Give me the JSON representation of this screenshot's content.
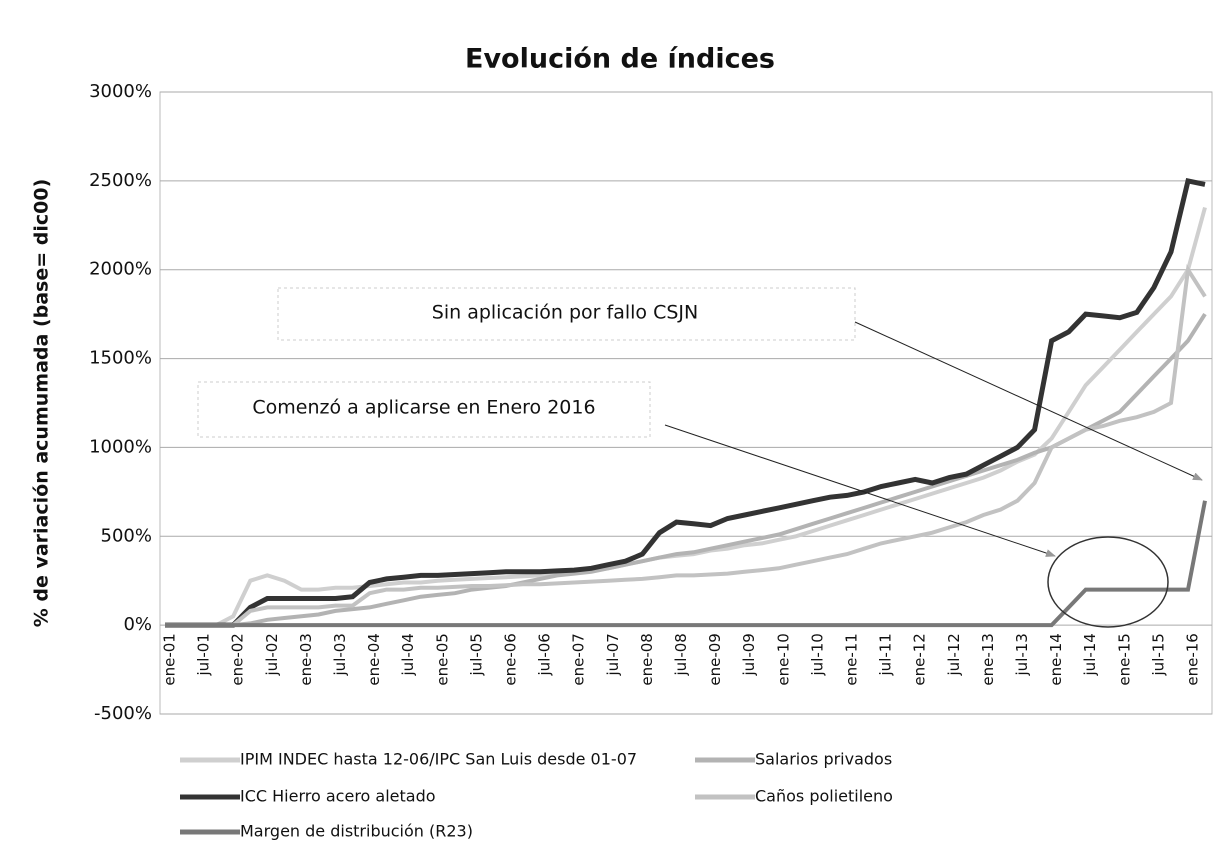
{
  "chart_data": {
    "type": "line",
    "title": "Evolución de índices",
    "y_label": "% de variación acumumada (base= dic00)",
    "annotations": [
      "Sin aplicación por fallo CSJN",
      "Comenzó a aplicarse en Enero 2016"
    ],
    "categories": [
      "ene-01",
      null,
      "jul-01",
      null,
      "ene-02",
      null,
      "jul-02",
      null,
      "ene-03",
      null,
      "jul-03",
      null,
      "ene-04",
      null,
      "jul-04",
      null,
      "ene-05",
      null,
      "jul-05",
      null,
      "ene-06",
      null,
      "jul-06",
      null,
      "ene-07",
      null,
      "jul-07",
      null,
      "ene-08",
      null,
      "jul-08",
      null,
      "ene-09",
      null,
      "jul-09",
      null,
      "ene-10",
      null,
      "jul-10",
      null,
      "ene-11",
      null,
      "jul-11",
      null,
      "ene-12",
      null,
      "jul-12",
      null,
      "ene-13",
      null,
      "jul-13",
      null,
      "ene-14",
      null,
      "jul-14",
      null,
      "ene-15",
      null,
      "jul-15",
      null,
      "ene-16",
      null
    ],
    "series": [
      {
        "name": "IPIM INDEC hasta 12-06/IPC San Luis desde 01-07",
        "color": "#cfcfcf",
        "values": [
          0,
          0,
          0,
          0,
          50,
          250,
          280,
          250,
          200,
          200,
          210,
          210,
          220,
          230,
          240,
          240,
          250,
          255,
          260,
          265,
          270,
          275,
          280,
          290,
          300,
          310,
          320,
          340,
          360,
          380,
          390,
          400,
          420,
          430,
          450,
          460,
          480,
          500,
          530,
          560,
          590,
          620,
          650,
          680,
          710,
          740,
          770,
          800,
          830,
          870,
          920,
          960,
          1050,
          1200,
          1350,
          1450,
          1550,
          1650,
          1750,
          1850,
          2000,
          2350
        ]
      },
      {
        "name": "Salarios privados",
        "color": "#b3b3b3",
        "values": [
          0,
          0,
          0,
          0,
          0,
          10,
          30,
          40,
          50,
          60,
          80,
          90,
          100,
          120,
          140,
          160,
          170,
          180,
          200,
          210,
          220,
          240,
          260,
          280,
          290,
          300,
          320,
          340,
          360,
          380,
          400,
          410,
          430,
          450,
          470,
          490,
          510,
          540,
          570,
          600,
          630,
          660,
          690,
          720,
          750,
          780,
          810,
          840,
          870,
          900,
          930,
          970,
          1000,
          1050,
          1100,
          1150,
          1200,
          1300,
          1400,
          1500,
          1600,
          1750
        ]
      },
      {
        "name": "ICC Hierro acero aletado",
        "color": "#333333",
        "values": [
          0,
          0,
          0,
          0,
          0,
          100,
          150,
          150,
          150,
          150,
          150,
          160,
          240,
          260,
          270,
          280,
          280,
          285,
          290,
          295,
          300,
          300,
          300,
          305,
          310,
          320,
          340,
          360,
          400,
          520,
          580,
          570,
          560,
          600,
          620,
          640,
          660,
          680,
          700,
          720,
          730,
          750,
          780,
          800,
          820,
          800,
          830,
          850,
          900,
          950,
          1000,
          1100,
          1600,
          1650,
          1750,
          1740,
          1730,
          1760,
          1900,
          2100,
          2500,
          2480
        ]
      },
      {
        "name": "Caños polietileno",
        "color": "#c2c2c2",
        "values": [
          0,
          0,
          0,
          0,
          0,
          80,
          100,
          100,
          100,
          100,
          110,
          110,
          180,
          200,
          200,
          210,
          210,
          215,
          220,
          220,
          225,
          230,
          230,
          235,
          240,
          245,
          250,
          255,
          260,
          270,
          280,
          280,
          285,
          290,
          300,
          310,
          320,
          340,
          360,
          380,
          400,
          430,
          460,
          480,
          500,
          520,
          550,
          580,
          620,
          650,
          700,
          800,
          1000,
          1050,
          1100,
          1120,
          1150,
          1170,
          1200,
          1250,
          2000,
          1850
        ]
      },
      {
        "name": "Margen de distribución (R23)",
        "color": "#787878",
        "values": [
          0,
          0,
          0,
          0,
          0,
          0,
          0,
          0,
          0,
          0,
          0,
          0,
          0,
          0,
          0,
          0,
          0,
          0,
          0,
          0,
          0,
          0,
          0,
          0,
          0,
          0,
          0,
          0,
          0,
          0,
          0,
          0,
          0,
          0,
          0,
          0,
          0,
          0,
          0,
          0,
          0,
          0,
          0,
          0,
          0,
          0,
          0,
          0,
          0,
          0,
          0,
          0,
          0,
          100,
          200,
          200,
          200,
          200,
          200,
          200,
          200,
          700
        ]
      }
    ],
    "ylim": [
      -500,
      3000
    ],
    "yticks": [
      {
        "value": -500,
        "label": "-500%"
      },
      {
        "value": 0,
        "label": "0%"
      },
      {
        "value": 500,
        "label": "500%"
      },
      {
        "value": 1000,
        "label": "1000%"
      },
      {
        "value": 1500,
        "label": "1500%"
      },
      {
        "value": 2000,
        "label": "2000%"
      },
      {
        "value": 2500,
        "label": "2500%"
      },
      {
        "value": 3000,
        "label": "3000%"
      }
    ],
    "grid": true
  }
}
